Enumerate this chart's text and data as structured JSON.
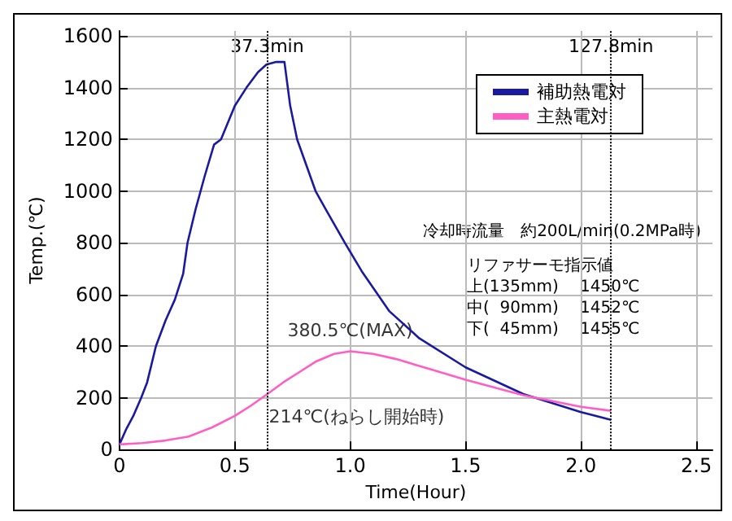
{
  "chart_data": {
    "type": "line",
    "xlabel": "Time(Hour)",
    "ylabel": "Temp.(℃)",
    "xlim": [
      0,
      2.57
    ],
    "xticks": [
      0,
      {
        "value": 0.5,
        "label": "0.5"
      },
      {
        "value": 1,
        "label": "1.0"
      },
      {
        "value": 1.5,
        "label": "1.5"
      },
      {
        "value": 2,
        "label": "2.0"
      },
      {
        "value": 2.5,
        "label": "2.5"
      }
    ],
    "ylim": [
      0,
      1620
    ],
    "yticks": [
      0,
      200,
      400,
      600,
      800,
      1000,
      1200,
      1400,
      1600
    ],
    "grid": true,
    "legend": "top right",
    "marker": "none",
    "line_style": "solid",
    "series": [
      {
        "name": "補助熱電対",
        "color": "#1a1aa0",
        "x": [
          0,
          0.03,
          0.06,
          0.094,
          0.12,
          0.158,
          0.2,
          0.24,
          0.276,
          0.295,
          0.33,
          0.37,
          0.41,
          0.44,
          0.5,
          0.55,
          0.6,
          0.637,
          0.68,
          0.715,
          0.74,
          0.77,
          0.81,
          0.85,
          0.9,
          0.977,
          1.05,
          1.17,
          1.3,
          1.5,
          1.75,
          2.0,
          2.13
        ],
        "values": [
          20,
          80,
          130,
          200,
          260,
          400,
          500,
          580,
          680,
          800,
          930,
          1060,
          1180,
          1200,
          1330,
          1400,
          1460,
          1490,
          1500,
          1500,
          1330,
          1200,
          1100,
          1000,
          920,
          800,
          690,
          535,
          430,
          318,
          215,
          145,
          115
        ]
      },
      {
        "name": "主熱電対",
        "color": "#ff5ec4",
        "x": [
          0,
          0.1,
          0.2,
          0.3,
          0.4,
          0.5,
          0.57,
          0.64,
          0.71,
          0.78,
          0.85,
          0.93,
          1.0,
          1.1,
          1.2,
          1.35,
          1.5,
          1.75,
          2.0,
          2.13
        ],
        "values": [
          20,
          25,
          35,
          50,
          85,
          130,
          170,
          214,
          260,
          300,
          340,
          370,
          380.5,
          370,
          350,
          310,
          270,
          210,
          165,
          150
        ]
      }
    ],
    "ref_lines": [
      {
        "axis": "x",
        "value": 0.64,
        "label": "37.3min",
        "line_style": "dotted",
        "color": "#000000"
      },
      {
        "axis": "x",
        "value": 2.13,
        "label": "127.8min",
        "line_style": "dotted",
        "color": "#000000"
      }
    ],
    "annotations": [
      {
        "text": "380.5℃(MAX)",
        "x": 1.0,
        "y": 380.5
      },
      {
        "text": "214℃(ねらし開始時)",
        "x": 0.64,
        "y": 214
      },
      "冷却時流量　約200L/min(0.2MPa時)",
      "リファサーモ指示値",
      "上(135mm)　 1450℃",
      "中(  90mm)　 1452℃",
      "下(  45mm)　 1455℃"
    ]
  }
}
